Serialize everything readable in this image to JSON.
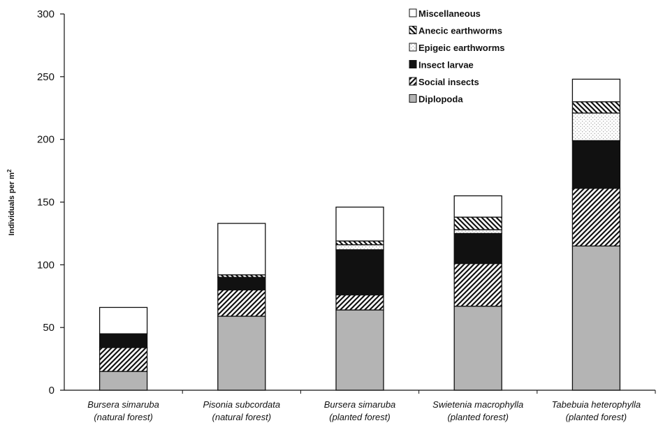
{
  "chart_data": {
    "type": "bar",
    "stacked": true,
    "title": "",
    "xlabel": "",
    "ylabel": "Individuals per m",
    "ylabel_superscript": "2",
    "ylim": [
      0,
      300
    ],
    "yticks": [
      "0",
      "50",
      "100",
      "150",
      "200",
      "250",
      "300"
    ],
    "grid": false,
    "legend_position": "top-right",
    "categories": [
      {
        "name": "Bursera simaruba",
        "note": "(natural forest)"
      },
      {
        "name": "Pisonia subcordata",
        "note": "(natural forest)"
      },
      {
        "name": "Bursera simaruba",
        "note": "(planted forest)"
      },
      {
        "name": "Swietenia macrophylla",
        "note": "(planted forest)"
      },
      {
        "name": "Tabebuia heterophylla",
        "note": "(planted forest)"
      }
    ],
    "series": [
      {
        "name": "Diplopoda",
        "pattern": "solid-gray",
        "color": "#b4b4b4",
        "values": [
          15,
          59,
          64,
          67,
          115
        ]
      },
      {
        "name": "Social insects",
        "pattern": "diagonal-hatch",
        "color": "#111111",
        "values": [
          19,
          21,
          12,
          34,
          46
        ]
      },
      {
        "name": "Insect larvae",
        "pattern": "solid-black",
        "color": "#111111",
        "values": [
          11,
          10,
          36,
          24,
          38
        ]
      },
      {
        "name": "Epigeic earthworms",
        "pattern": "dotted",
        "color": "#ffffff",
        "values": [
          0,
          0,
          4,
          3,
          22
        ]
      },
      {
        "name": "Anecic earthworms",
        "pattern": "reverse-diagonal-hatch",
        "color": "#111111",
        "values": [
          0,
          2,
          3,
          10,
          9
        ]
      },
      {
        "name": "Miscellaneous",
        "pattern": "solid-white",
        "color": "#ffffff",
        "values": [
          21,
          41,
          27,
          17,
          18
        ]
      }
    ]
  }
}
